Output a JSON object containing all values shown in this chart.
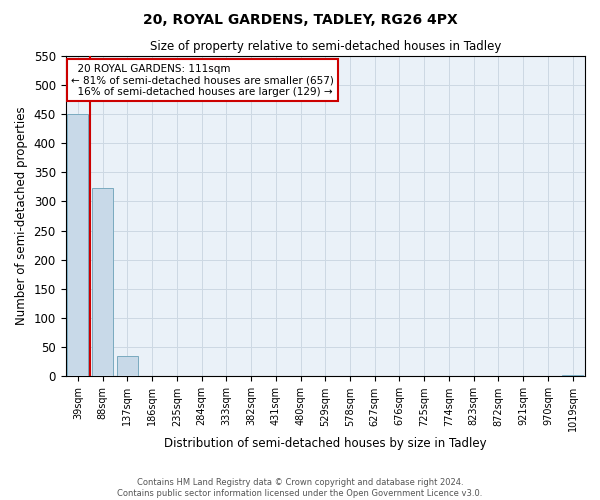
{
  "title": "20, ROYAL GARDENS, TADLEY, RG26 4PX",
  "subtitle": "Size of property relative to semi-detached houses in Tadley",
  "xlabel": "Distribution of semi-detached houses by size in Tadley",
  "ylabel": "Number of semi-detached properties",
  "bar_labels": [
    "39sqm",
    "88sqm",
    "137sqm",
    "186sqm",
    "235sqm",
    "284sqm",
    "333sqm",
    "382sqm",
    "431sqm",
    "480sqm",
    "529sqm",
    "578sqm",
    "627sqm",
    "676sqm",
    "725sqm",
    "774sqm",
    "823sqm",
    "872sqm",
    "921sqm",
    "970sqm",
    "1019sqm"
  ],
  "bar_values": [
    449,
    323,
    35,
    0,
    0,
    0,
    0,
    0,
    0,
    0,
    0,
    0,
    0,
    0,
    0,
    0,
    0,
    0,
    0,
    0,
    3
  ],
  "bar_color": "#c8d9e8",
  "bar_edgecolor": "#7aaabf",
  "ylim": [
    0,
    550
  ],
  "yticks": [
    0,
    50,
    100,
    150,
    200,
    250,
    300,
    350,
    400,
    450,
    500,
    550
  ],
  "property_line_color": "#cc0000",
  "annotation_box_text": "  20 ROYAL GARDENS: 111sqm  \n← 81% of semi-detached houses are smaller (657)\n  16% of semi-detached houses are larger (129) →",
  "annotation_box_edgecolor": "#cc0000",
  "footer_line1": "Contains HM Land Registry data © Crown copyright and database right 2024.",
  "footer_line2": "Contains public sector information licensed under the Open Government Licence v3.0.",
  "grid_color": "#cdd8e3",
  "bg_color": "#eaf1f8"
}
